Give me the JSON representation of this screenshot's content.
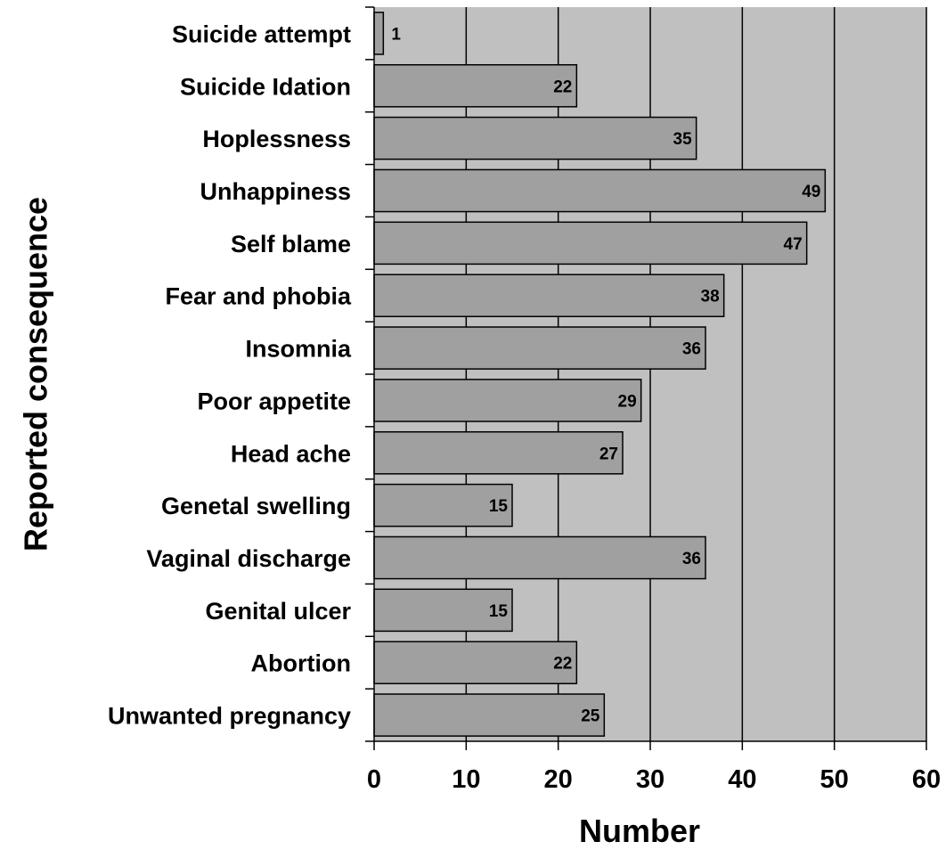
{
  "chart_data": {
    "type": "bar",
    "orientation": "horizontal",
    "categories": [
      "Suicide attempt",
      "Suicide Idation",
      "Hoplessness",
      "Unhappiness",
      "Self blame",
      "Fear and phobia",
      "Insomnia",
      "Poor appetite",
      "Head ache",
      "Genetal swelling",
      "Vaginal discharge",
      "Genital ulcer",
      "Abortion",
      "Unwanted pregnancy"
    ],
    "values": [
      1,
      22,
      35,
      49,
      47,
      38,
      36,
      29,
      27,
      15,
      36,
      15,
      22,
      25
    ],
    "title": "",
    "xlabel": "Number",
    "ylabel": "Reported consequence",
    "xlim": [
      0,
      60
    ],
    "xticks": [
      0,
      10,
      20,
      30,
      40,
      50,
      60
    ],
    "grid": true,
    "legend": "none",
    "colors": {
      "plot_background": "#c0c0c0",
      "bar_fill": "#a0a0a0",
      "bar_stroke": "#000000",
      "gridline": "#000000"
    }
  }
}
